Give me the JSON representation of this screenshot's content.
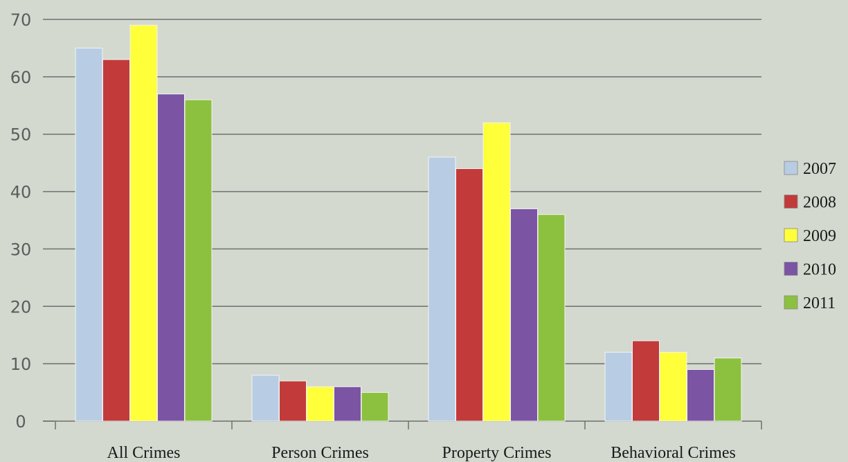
{
  "chart_data": {
    "type": "bar",
    "categories": [
      "All Crimes",
      "Person Crimes",
      "Property Crimes",
      "Behavioral Crimes"
    ],
    "series": [
      {
        "name": "2007",
        "color": "#b8cde4",
        "values": [
          65,
          8,
          46,
          12
        ]
      },
      {
        "name": "2008",
        "color": "#c23a3a",
        "values": [
          63,
          7,
          44,
          14
        ]
      },
      {
        "name": "2009",
        "color": "#ffff3a",
        "values": [
          69,
          6,
          52,
          12
        ]
      },
      {
        "name": "2010",
        "color": "#7b54a3",
        "values": [
          57,
          6,
          37,
          9
        ]
      },
      {
        "name": "2011",
        "color": "#8cc13f",
        "values": [
          56,
          5,
          36,
          11
        ]
      }
    ],
    "title": "",
    "xlabel": "",
    "ylabel": "",
    "ylim": [
      0,
      70
    ],
    "yticks": [
      "0",
      "10",
      "20",
      "30",
      "40",
      "50",
      "60",
      "70"
    ],
    "grid": true,
    "legend": "right"
  }
}
